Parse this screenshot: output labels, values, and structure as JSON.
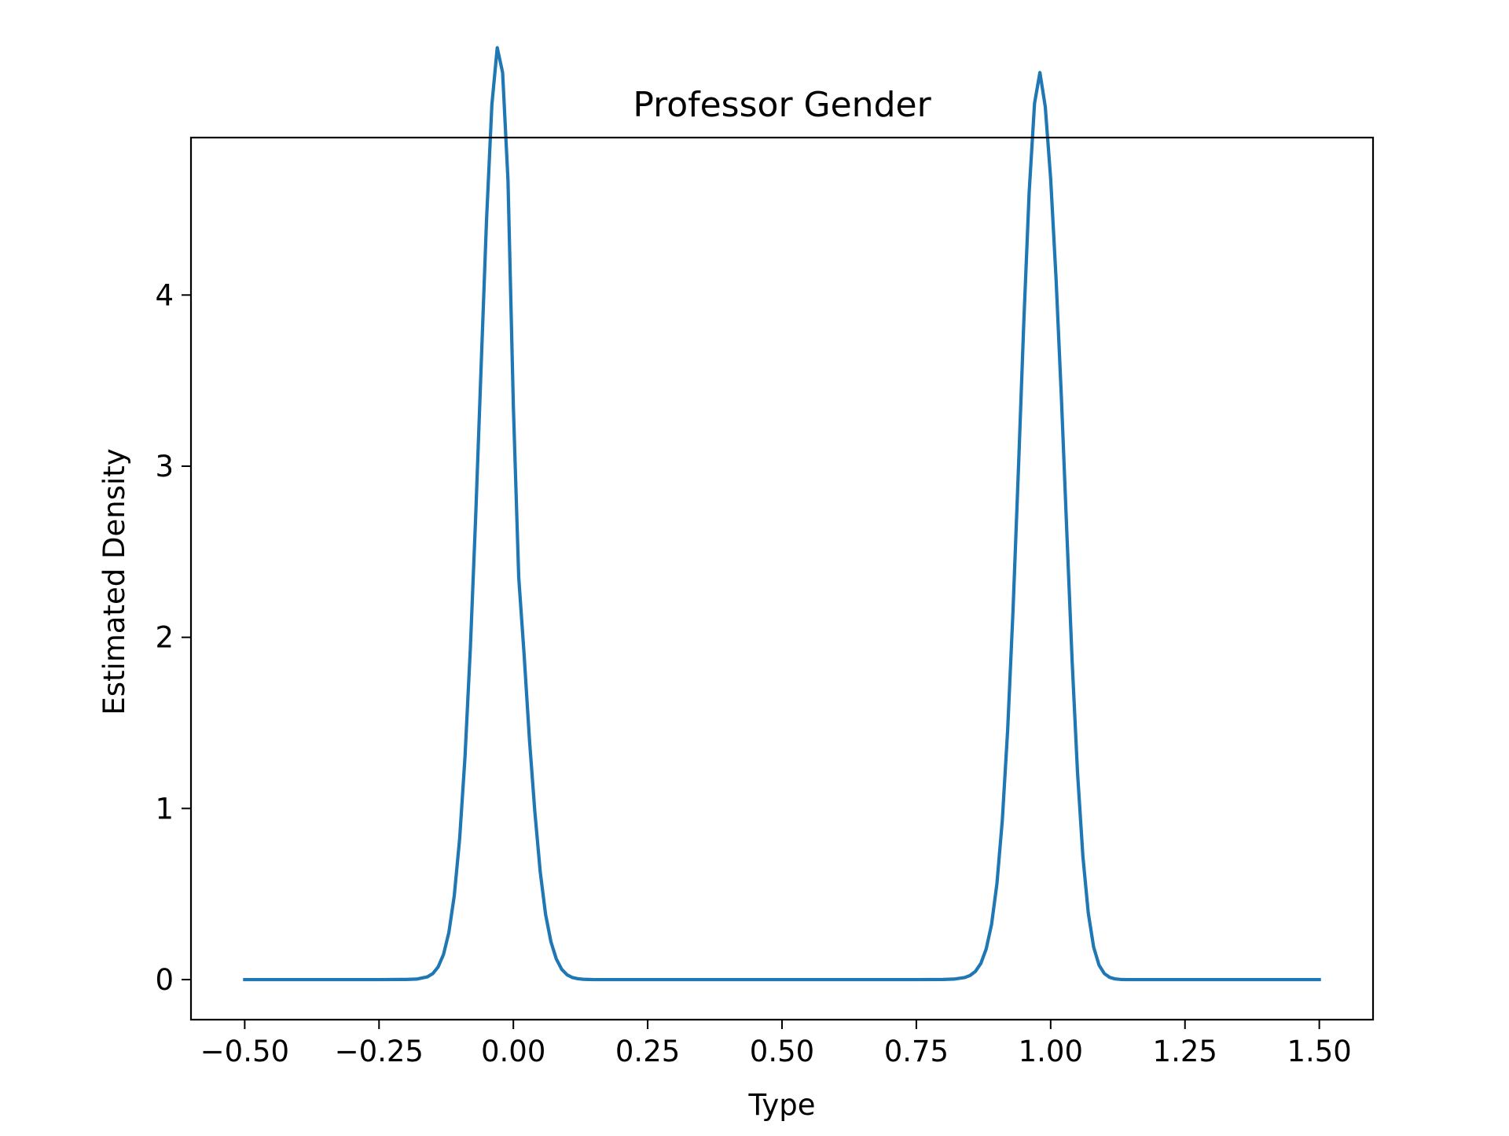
{
  "chart_data": {
    "type": "line",
    "title": "Professor Gender",
    "xlabel": "Type",
    "ylabel": "Estimated Density",
    "xlim": [
      -0.6,
      1.6
    ],
    "ylim": [
      -0.234,
      4.92
    ],
    "xticks": [
      -0.5,
      -0.25,
      0.0,
      0.25,
      0.5,
      0.75,
      1.0,
      1.25,
      1.5
    ],
    "xtick_labels": [
      "−0.50",
      "−0.25",
      "0.00",
      "0.25",
      "0.50",
      "0.75",
      "1.00",
      "1.25",
      "1.50"
    ],
    "yticks": [
      0,
      1,
      2,
      3,
      4
    ],
    "ytick_labels": [
      "0",
      "1",
      "2",
      "3",
      "4"
    ],
    "grid": false,
    "line_color": "#1f77b4",
    "x": [
      -0.5,
      -0.4,
      -0.3,
      -0.25,
      -0.2,
      -0.18,
      -0.16,
      -0.15,
      -0.14,
      -0.13,
      -0.12,
      -0.11,
      -0.1,
      -0.09,
      -0.08,
      -0.07,
      -0.06,
      -0.05,
      -0.04,
      -0.03,
      -0.02,
      -0.01,
      0.0,
      0.01,
      0.02,
      0.03,
      0.04,
      0.05,
      0.06,
      0.07,
      0.08,
      0.09,
      0.1,
      0.11,
      0.12,
      0.13,
      0.14,
      0.15,
      0.16,
      0.18,
      0.2,
      0.25,
      0.3,
      0.4,
      0.5,
      0.6,
      0.7,
      0.75,
      0.8,
      0.82,
      0.84,
      0.85,
      0.86,
      0.87,
      0.88,
      0.89,
      0.9,
      0.91,
      0.92,
      0.93,
      0.94,
      0.95,
      0.96,
      0.97,
      0.98,
      0.99,
      1.0,
      1.01,
      1.02,
      1.03,
      1.04,
      1.05,
      1.06,
      1.07,
      1.08,
      1.09,
      1.1,
      1.11,
      1.12,
      1.13,
      1.14,
      1.15,
      1.16,
      1.18,
      1.2,
      1.25,
      1.3,
      1.4,
      1.5
    ],
    "y": [
      0.0,
      0.0,
      0.0,
      0.0,
      0.001,
      0.003,
      0.016,
      0.035,
      0.074,
      0.147,
      0.276,
      0.49,
      0.822,
      1.3,
      1.939,
      2.717,
      3.58,
      4.433,
      5.112,
      5.445,
      5.3,
      4.67,
      3.35,
      2.35,
      1.9,
      1.4,
      0.98,
      0.63,
      0.38,
      0.22,
      0.12,
      0.06,
      0.028,
      0.012,
      0.005,
      0.002,
      0.001,
      0.0,
      0.0,
      0.0,
      0.0,
      0.0,
      0.0,
      0.0,
      0.0,
      0.0,
      0.0,
      0.0,
      0.001,
      0.003,
      0.012,
      0.024,
      0.048,
      0.094,
      0.179,
      0.322,
      0.56,
      0.93,
      1.46,
      2.16,
      2.98,
      3.84,
      4.6,
      5.12,
      5.3,
      5.1,
      4.68,
      4.1,
      3.4,
      2.62,
      1.86,
      1.21,
      0.72,
      0.39,
      0.19,
      0.085,
      0.035,
      0.013,
      0.004,
      0.001,
      0.0,
      0.0,
      0.0,
      0.0,
      0.0,
      0.0,
      0.0,
      0.0,
      0.0
    ]
  }
}
